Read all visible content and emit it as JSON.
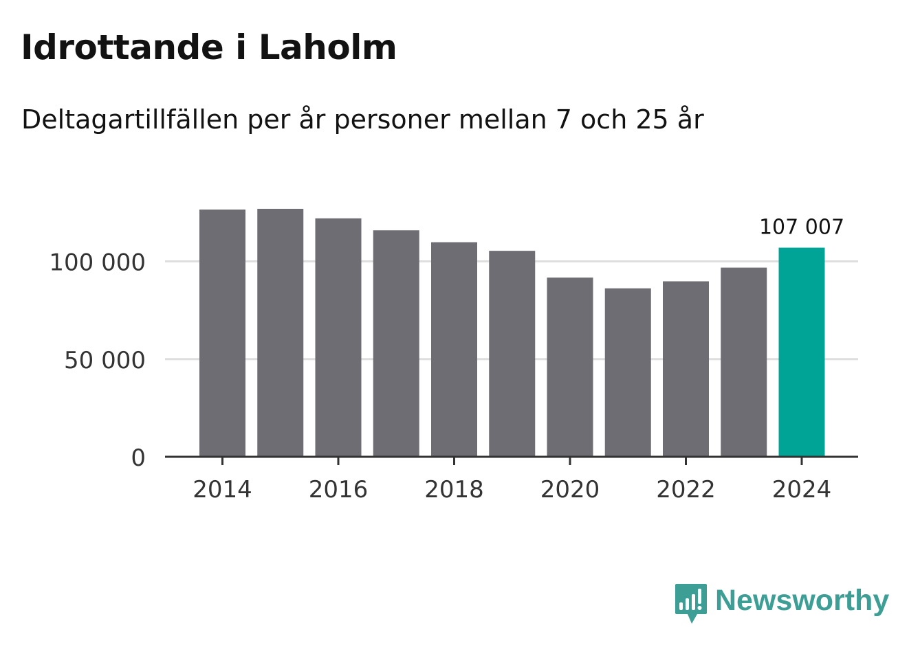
{
  "header": {
    "title": "Idrottande i Laholm",
    "subtitle": "Deltagartillfällen per år personer mellan 7 och 25 år"
  },
  "brand": {
    "name": "Newsworthy",
    "logo_icon": "newsworthy-bar-chart-speech-bubble-icon",
    "color": "#3d9e96"
  },
  "colors": {
    "bar": "#6e6d73",
    "highlight": "#00a497",
    "grid": "#dedede",
    "axis": "#333333",
    "text": "#121212",
    "tick_text": "#333333"
  },
  "chart_data": {
    "type": "bar",
    "title": "Idrottande i Laholm",
    "subtitle": "Deltagartillfällen per år personer mellan 7 och 25 år",
    "xlabel": "",
    "ylabel": "",
    "categories": [
      2014,
      2015,
      2016,
      2017,
      2018,
      2019,
      2020,
      2021,
      2022,
      2023,
      2024
    ],
    "values": [
      126500,
      126900,
      122000,
      115900,
      109800,
      105400,
      91700,
      86200,
      89800,
      96800,
      107007
    ],
    "highlight_index": 10,
    "highlight_label": "107 007",
    "ylim": [
      0,
      135000
    ],
    "yticks": [
      0,
      50000,
      100000
    ],
    "ytick_labels": [
      "0",
      "50 000",
      "100 000"
    ],
    "xticks": [
      2014,
      2016,
      2018,
      2020,
      2022,
      2024
    ],
    "xtick_labels": [
      "2014",
      "2016",
      "2018",
      "2020",
      "2022",
      "2024"
    ],
    "grid": true,
    "legend": "none"
  }
}
